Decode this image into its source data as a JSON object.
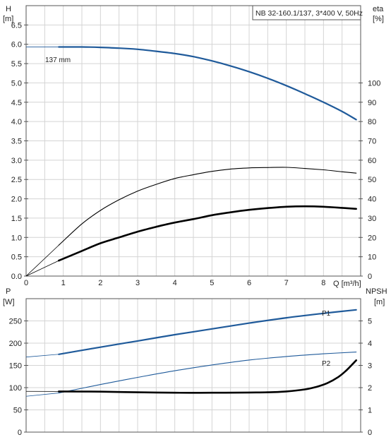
{
  "chart_data": [
    {
      "type": "line",
      "title": "NB 32-160.1/137, 3*400 V, 50Hz",
      "xlabel": "Q [m³/h]",
      "ylabel_left": [
        "H",
        "[m]"
      ],
      "ylabel_right": [
        "eta",
        "[%]"
      ],
      "xlim": [
        0,
        9
      ],
      "ylim_left": [
        0,
        7
      ],
      "ylim_right": [
        0,
        140
      ],
      "x_ticks": [
        "0",
        "1",
        "2",
        "3",
        "4",
        "5",
        "6",
        "7",
        "8"
      ],
      "y_ticks_left": [
        "0.0",
        "0.5",
        "1.0",
        "1.5",
        "2.0",
        "2.5",
        "3.0",
        "3.5",
        "4.0",
        "4.5",
        "5.0",
        "5.5",
        "6.0",
        "6.5"
      ],
      "y_ticks_right": [
        "0",
        "10",
        "20",
        "30",
        "40",
        "50",
        "60",
        "70",
        "80",
        "90",
        "100"
      ],
      "grid": true,
      "annotations": [
        "137 mm"
      ],
      "series": [
        {
          "name": "137 mm",
          "axis": "left",
          "color": "#1f5a9a",
          "extension_x": [
            0,
            0.88
          ],
          "x": [
            0.88,
            1.5,
            2,
            2.5,
            3,
            3.5,
            4,
            4.5,
            5,
            5.5,
            6,
            6.5,
            7,
            7.5,
            8,
            8.5,
            8.88
          ],
          "values": [
            5.93,
            5.93,
            5.92,
            5.9,
            5.87,
            5.82,
            5.76,
            5.68,
            5.57,
            5.44,
            5.29,
            5.12,
            4.93,
            4.72,
            4.5,
            4.26,
            4.05
          ]
        },
        {
          "axis": "right",
          "color": "#000000",
          "extension_x": [
            0,
            0.88
          ],
          "x": [
            0.88,
            1.5,
            2,
            2.5,
            3,
            3.5,
            4,
            4.5,
            5,
            5.5,
            6,
            6.5,
            7,
            7.5,
            8,
            8.5,
            8.88
          ],
          "values": [
            16,
            27,
            34,
            39.5,
            44,
            47.5,
            50.5,
            52.5,
            54.2,
            55.4,
            56,
            56.2,
            56.3,
            55.7,
            55,
            54,
            53.3
          ]
        },
        {
          "axis": "right",
          "color": "#000000",
          "extension_x": [
            0,
            0.88
          ],
          "x": [
            0.88,
            1.5,
            2,
            2.5,
            3,
            3.5,
            4,
            4.5,
            5,
            5.5,
            6,
            6.5,
            7,
            7.5,
            8,
            8.5,
            8.88
          ],
          "values": [
            8,
            13,
            17,
            20,
            23,
            25.5,
            27.7,
            29.5,
            31.5,
            33,
            34.3,
            35.2,
            35.9,
            36.1,
            35.9,
            35.3,
            34.8
          ]
        }
      ]
    },
    {
      "type": "line",
      "xlim": [
        0,
        9
      ],
      "ylabel_left": [
        "P",
        "[W]"
      ],
      "ylabel_right": [
        "NPSH",
        "[m]"
      ],
      "ylim_left": [
        0,
        300
      ],
      "ylim_right": [
        0,
        6
      ],
      "y_ticks_left": [
        "0",
        "50",
        "100",
        "150",
        "200",
        "250"
      ],
      "y_ticks_right": [
        "0",
        "1",
        "2",
        "3",
        "4",
        "5"
      ],
      "grid": true,
      "series": [
        {
          "name": "P1",
          "axis": "left",
          "color": "#1f5a9a",
          "extension_x": [
            0,
            0.88
          ],
          "x": [
            0.88,
            2,
            3,
            4,
            5,
            6,
            7,
            8,
            8.88
          ],
          "values": [
            175,
            191,
            205,
            219,
            232,
            245,
            257,
            267,
            275
          ]
        },
        {
          "name": "P2",
          "axis": "left",
          "color": "#1f5a9a",
          "extension_x": [
            0,
            0.88
          ],
          "x": [
            0.88,
            2,
            3,
            4,
            5,
            6,
            7,
            8,
            8.88
          ],
          "values": [
            88,
            107,
            123,
            138,
            151,
            162,
            170,
            176,
            180
          ]
        },
        {
          "axis": "right",
          "color": "#000000",
          "extension_x": [
            0,
            0.88
          ],
          "x": [
            0.88,
            2,
            3,
            4,
            5,
            6,
            6.5,
            7,
            7.5,
            7.8,
            8.1,
            8.4,
            8.6,
            8.75,
            8.88
          ],
          "values": [
            1.83,
            1.82,
            1.79,
            1.77,
            1.77,
            1.78,
            1.79,
            1.83,
            1.92,
            2.03,
            2.2,
            2.48,
            2.75,
            3.0,
            3.23
          ]
        }
      ]
    }
  ]
}
